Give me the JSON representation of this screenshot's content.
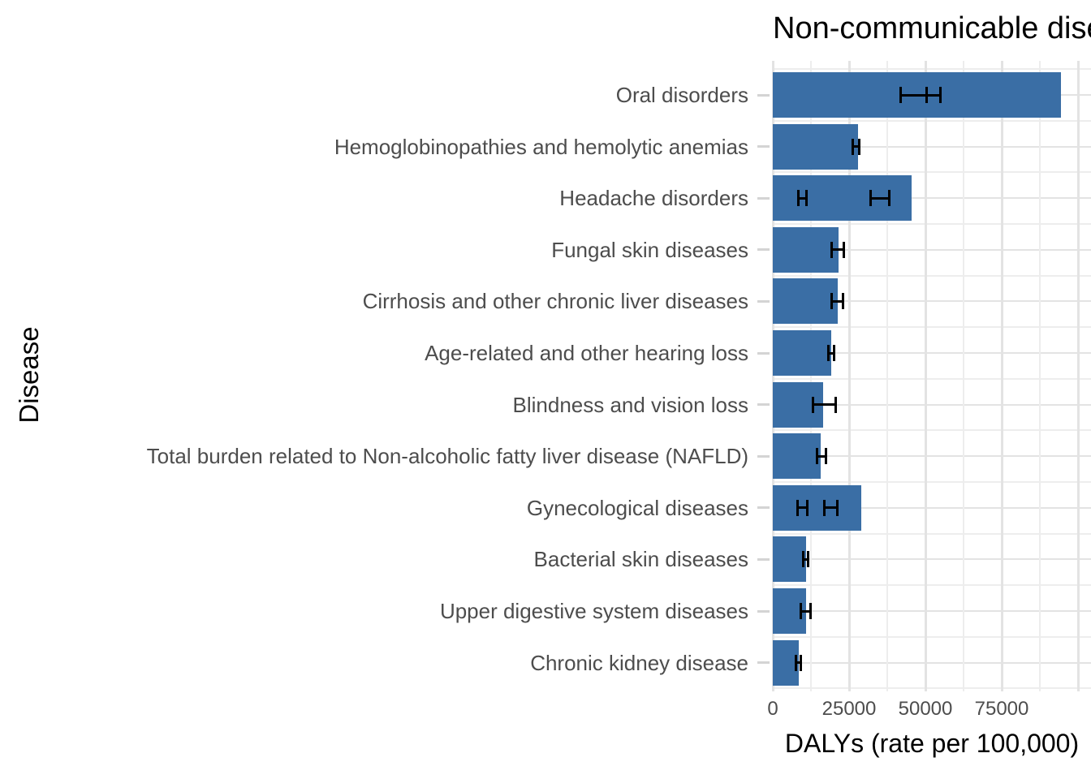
{
  "chart_data": {
    "type": "bar",
    "orientation": "horizontal",
    "title": "Non-communicable diseases",
    "xlabel": "DALYs (rate per 100,000)",
    "ylabel": "Disease",
    "x_ticks": [
      0,
      25000,
      50000,
      75000
    ],
    "x_minor_step": 12500,
    "x_grid_max": 100000,
    "xlim": [
      0,
      104000
    ],
    "grid": true,
    "legend": "none",
    "bar_color": "#3a6ea5",
    "errorbar_color": "#000000",
    "categories": [
      "Oral disorders",
      "Hemoglobinopathies and hemolytic anemias",
      "Headache disorders",
      "Fungal skin diseases",
      "Cirrhosis and other chronic liver diseases",
      "Age-related and other hearing loss",
      "Blindness and vision loss",
      "Total burden related to Non-alcoholic fatty liver disease (NAFLD)",
      "Gynecological diseases",
      "Bacterial skin diseases",
      "Upper digestive system diseases",
      "Chronic kidney disease"
    ],
    "values": [
      94300,
      27850,
      45600,
      21500,
      21300,
      19150,
      16500,
      15700,
      28900,
      10900,
      11000,
      8600
    ],
    "error_bars": [
      [
        [
          42000,
          50500
        ],
        [
          50500,
          54800
        ]
      ],
      [
        [
          26100,
          28400
        ]
      ],
      [
        [
          8300,
          11000
        ],
        [
          32100,
          38200
        ]
      ],
      [
        [
          19400,
          23400
        ]
      ],
      [
        [
          19400,
          22900
        ]
      ],
      [
        [
          18100,
          20000
        ]
      ],
      [
        [
          13200,
          20600
        ]
      ],
      [
        [
          14400,
          17400
        ]
      ],
      [
        [
          8100,
          11250
        ],
        [
          17000,
          21200
        ]
      ],
      [
        [
          10000,
          11500
        ]
      ],
      [
        [
          9200,
          12400
        ]
      ],
      [
        [
          7600,
          9200
        ]
      ]
    ]
  }
}
